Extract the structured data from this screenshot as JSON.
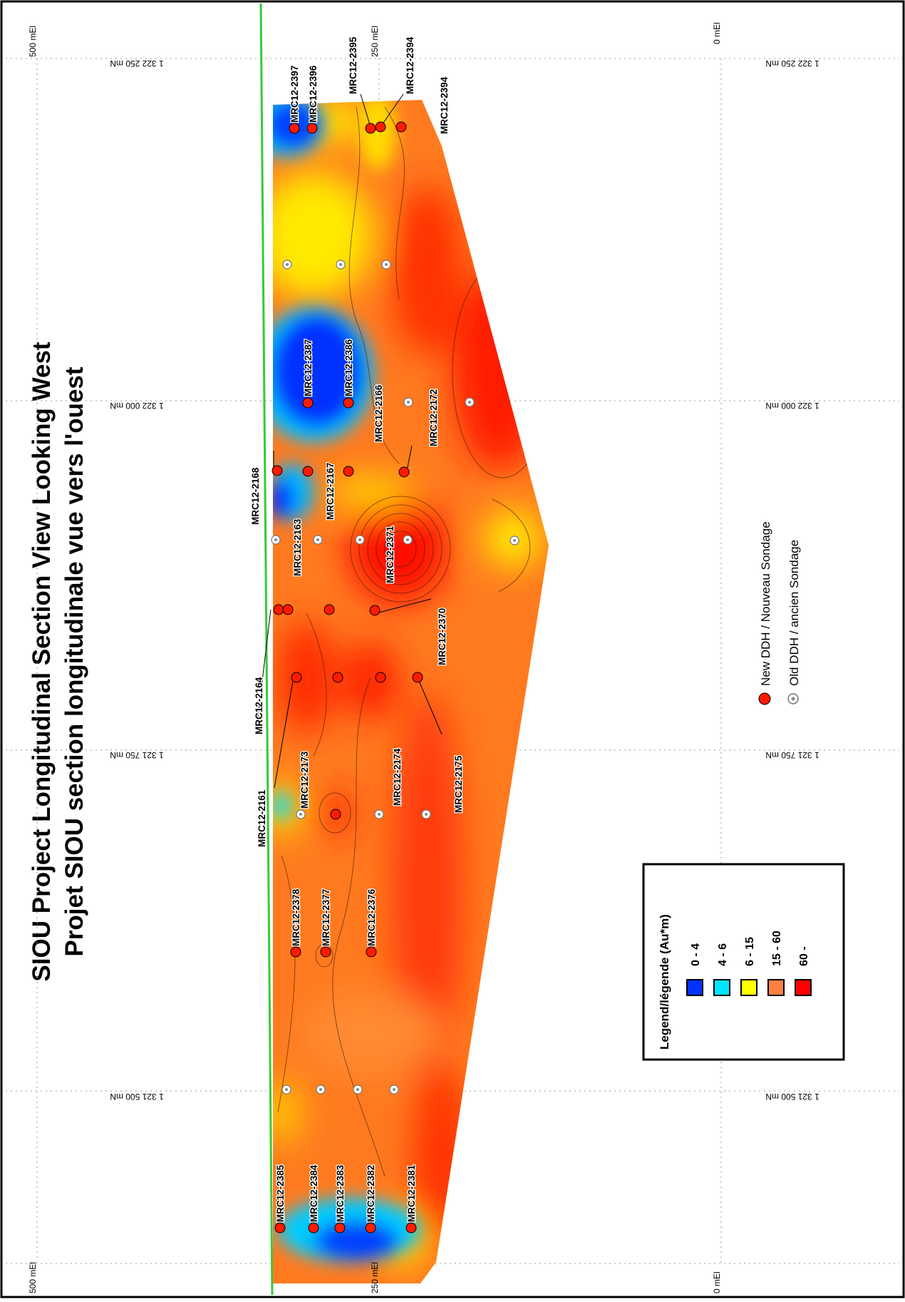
{
  "title": {
    "line1": "SIOU Project Longitudinal Section View Looking West",
    "line2": "Projet SIOU section longitudinale  vue vers l'ouest"
  },
  "axes": {
    "northing_labels": [
      "1 322 250 mN",
      "1 322 000 mN",
      "1 321 750 mN",
      "1 321 500 mN"
    ],
    "elevation_labels": {
      "top_left": "500 mEl",
      "top_mid": "250 mEl",
      "top_right": "0 mEl",
      "bottom_left": "500 mEl",
      "bottom_mid": "250 mEl",
      "bottom_right": "0 mEl"
    }
  },
  "legend": {
    "title": "Legend/légende (Au*m)",
    "classes": [
      {
        "label": "0 - 4",
        "color": "#0033ff"
      },
      {
        "label": "4 - 6",
        "color": "#00e5ff"
      },
      {
        "label": "6 - 15",
        "color": "#ffff00"
      },
      {
        "label": "15 - 60",
        "color": "#ff8040"
      },
      {
        "label": "60 -",
        "color": "#ff0000"
      }
    ]
  },
  "symbols": {
    "new_ddh": "New DDH / Nouveau Sondage",
    "old_ddh": "Old DDH / ancien Sondage"
  },
  "drill_holes": [
    "MRC12-2397",
    "MRC12-2396",
    "MRC12-2395",
    "MRC12-2394",
    "MRC12-2394",
    "MRC12-2387",
    "MRC12-2386",
    "MRC12-2166",
    "MRC12-2172",
    "MRC12-2168",
    "MRC12-2167",
    "MRC12-2163",
    "MRC12-2371",
    "MRC12-2164",
    "MRC12-2370",
    "MRC12-2161",
    "MRC12-2173",
    "MRC12-2174",
    "MRC12-2175",
    "MRC12-2378",
    "MRC12-2377",
    "MRC12-2376",
    "MRC12-2385",
    "MRC12-2384",
    "MRC12-2383",
    "MRC12-2382",
    "MRC12-2381"
  ]
}
